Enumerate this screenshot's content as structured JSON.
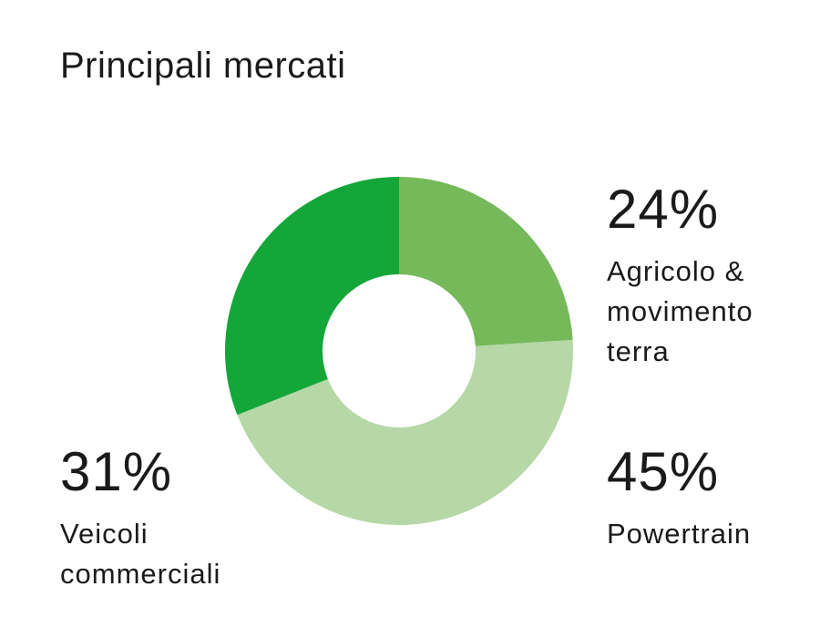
{
  "chart_data": {
    "type": "pie",
    "title": "Principali mercati",
    "slices": [
      {
        "label": "Agricolo & movimento terra",
        "label_lines": [
          "Agricolo &",
          "movimento",
          "terra"
        ],
        "value": 24,
        "value_label": "24%",
        "color": "#76b95a"
      },
      {
        "label": "Powertrain",
        "label_lines": [
          "Powertrain"
        ],
        "value": 45,
        "value_label": "45%",
        "color": "#b5d8a6"
      },
      {
        "label": "Veicoli commerciali",
        "label_lines": [
          "Veicoli",
          "commerciali"
        ],
        "value": 31,
        "value_label": "31%",
        "color": "#15a63a"
      }
    ],
    "donut": true
  }
}
